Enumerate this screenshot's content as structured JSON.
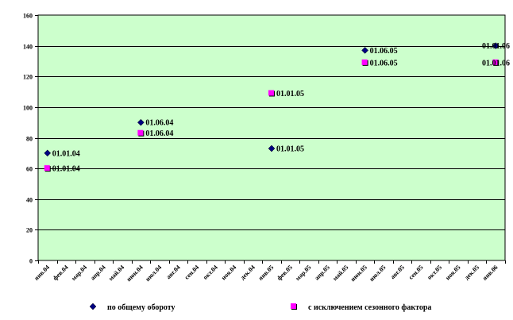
{
  "chart_data": {
    "type": "scatter",
    "title": "",
    "xlabel": "",
    "ylabel": "",
    "ylim": [
      0,
      160
    ],
    "ytick_step": 20,
    "yticks": [
      "0",
      "20",
      "40",
      "60",
      "80",
      "100",
      "120",
      "140",
      "160"
    ],
    "grid": "horizontal",
    "plot_background": "#ccffcc",
    "categories": [
      "янв.04",
      "фев.04",
      "мар.04",
      "апр.04",
      "май.04",
      "июн.04",
      "июл.04",
      "авг.04",
      "сен.04",
      "окт.04",
      "ноя.04",
      "дек.04",
      "янв.05",
      "фев.05",
      "мар.05",
      "апр.05",
      "май.05",
      "июн.05",
      "июл.05",
      "авг.05",
      "сен.05",
      "окт.05",
      "ноя.05",
      "дек.05",
      "янв.06"
    ],
    "legend_position": "bottom",
    "series": [
      {
        "name": "по общему обороту",
        "marker": "diamond",
        "color": "#000080",
        "points": [
          {
            "x": 0.5,
            "y": 70,
            "label": "01.01.04"
          },
          {
            "x": 5.5,
            "y": 90,
            "label": "01.06.04"
          },
          {
            "x": 12.5,
            "y": 73,
            "label": "01.01.05"
          },
          {
            "x": 17.5,
            "y": 137,
            "label": "01.06.05"
          },
          {
            "x": 24.5,
            "y": 140,
            "label": "01.01.06"
          }
        ]
      },
      {
        "name": "с исключением сезонного фактора",
        "marker": "square",
        "color": "#ff00ff",
        "points": [
          {
            "x": 0.5,
            "y": 60,
            "label": "01.01.04"
          },
          {
            "x": 5.5,
            "y": 83,
            "label": "01.06.04"
          },
          {
            "x": 12.5,
            "y": 109,
            "label": "01.01.05"
          },
          {
            "x": 17.5,
            "y": 129,
            "label": "01.06.05"
          },
          {
            "x": 24.5,
            "y": 129,
            "label": "01.01.06"
          }
        ]
      }
    ]
  }
}
